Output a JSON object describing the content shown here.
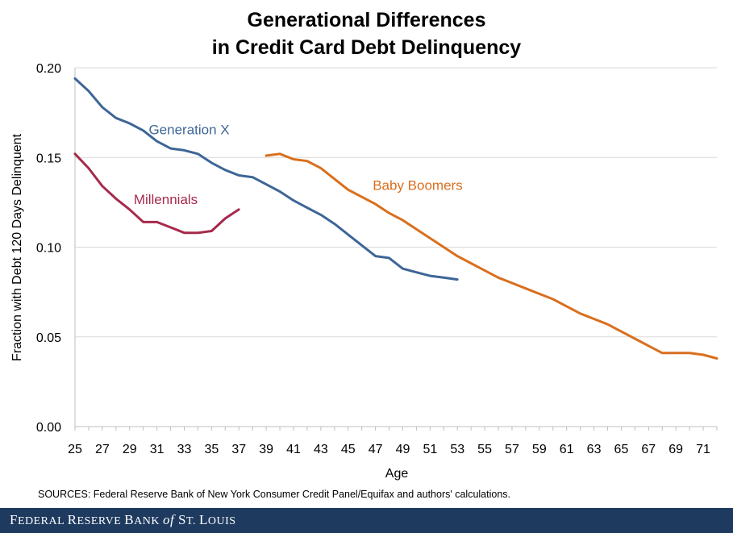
{
  "chart_data": {
    "type": "line",
    "title": [
      "Generational Differences",
      "in Credit Card Debt Delinquency"
    ],
    "xlabel": "Age",
    "ylabel": "Fraction with Debt 120 Days Delinquent",
    "xlim": [
      25,
      72
    ],
    "ylim": [
      0,
      0.2
    ],
    "xticks": [
      25,
      27,
      29,
      31,
      33,
      35,
      37,
      39,
      41,
      43,
      45,
      47,
      49,
      51,
      53,
      55,
      57,
      59,
      61,
      63,
      65,
      67,
      69,
      71
    ],
    "yticks": [
      0.0,
      0.05,
      0.1,
      0.15,
      0.2
    ],
    "ytick_labels": [
      "0.00",
      "0.05",
      "0.10",
      "0.15",
      "0.20"
    ],
    "grid": "horizontal",
    "series": [
      {
        "name": "Generation X",
        "color": "#3e6697",
        "label_pos": [
          30.4,
          0.163
        ],
        "x": [
          25,
          26,
          27,
          28,
          29,
          30,
          31,
          32,
          33,
          34,
          35,
          36,
          37,
          38,
          39,
          40,
          41,
          42,
          43,
          44,
          45,
          46,
          47,
          48,
          49,
          50,
          51,
          52,
          53
        ],
        "y": [
          0.194,
          0.187,
          0.178,
          0.172,
          0.169,
          0.165,
          0.159,
          0.155,
          0.154,
          0.152,
          0.147,
          0.143,
          0.14,
          0.139,
          0.135,
          0.131,
          0.126,
          0.122,
          0.118,
          0.113,
          0.107,
          0.101,
          0.095,
          0.094,
          0.088,
          0.086,
          0.084,
          0.083,
          0.082
        ]
      },
      {
        "name": "Millennials",
        "color": "#a62a4c",
        "label_pos": [
          29.3,
          0.124
        ],
        "x": [
          25,
          26,
          27,
          28,
          29,
          30,
          31,
          32,
          33,
          34,
          35,
          36,
          37
        ],
        "y": [
          0.152,
          0.144,
          0.134,
          0.127,
          0.121,
          0.114,
          0.114,
          0.111,
          0.108,
          0.108,
          0.109,
          0.116,
          0.121
        ]
      },
      {
        "name": "Baby Boomers",
        "color": "#d96f1e",
        "label_pos": [
          46.8,
          0.132
        ],
        "x": [
          39,
          40,
          41,
          42,
          43,
          44,
          45,
          46,
          47,
          48,
          49,
          50,
          51,
          52,
          53,
          54,
          55,
          56,
          57,
          58,
          59,
          60,
          61,
          62,
          63,
          64,
          65,
          66,
          67,
          68,
          69,
          70,
          71,
          72
        ],
        "y": [
          0.151,
          0.152,
          0.149,
          0.148,
          0.144,
          0.138,
          0.132,
          0.128,
          0.124,
          0.119,
          0.115,
          0.11,
          0.105,
          0.1,
          0.095,
          0.091,
          0.087,
          0.083,
          0.08,
          0.077,
          0.074,
          0.071,
          0.067,
          0.063,
          0.06,
          0.057,
          0.053,
          0.049,
          0.045,
          0.041,
          0.041,
          0.041,
          0.04,
          0.038
        ]
      }
    ]
  },
  "sources": "SOURCES: Federal Reserve Bank of New York Consumer Credit Panel/Equifax and authors' calculations.",
  "footer": {
    "part1_big": "F",
    "part1_small": "EDERAL ",
    "part2_big": "R",
    "part2_small": "ESERVE ",
    "part3_big": "B",
    "part3_small": "ANK ",
    "part4_of": "of",
    "part5_big": " S",
    "part5_small": "T. ",
    "part6_big": "L",
    "part6_small": "OUIS"
  }
}
